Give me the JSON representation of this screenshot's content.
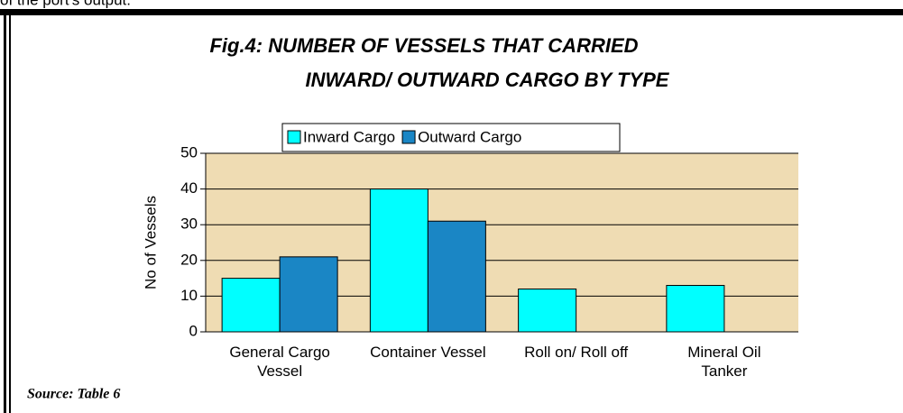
{
  "top_text": "of the port's output.",
  "source": "Source: Table 6",
  "chart_data": {
    "type": "bar",
    "title": [
      "Fig.4: NUMBER OF VESSELS THAT CARRIED",
      "INWARD/ OUTWARD CARGO BY TYPE"
    ],
    "y_label": "No of Vessels",
    "categories": [
      "General Cargo\nVessel",
      "Container Vessel",
      "Roll on/ Roll off",
      "Mineral Oil\nTanker"
    ],
    "series": [
      {
        "name": "Inward Cargo",
        "color": "#00ffff",
        "values": [
          15,
          40,
          12,
          13
        ]
      },
      {
        "name": "Outward Cargo",
        "color": "#1a86c5",
        "values": [
          21,
          31,
          0,
          0
        ]
      }
    ],
    "ylim": [
      0,
      50
    ],
    "yticks": [
      0,
      10,
      20,
      30,
      40,
      50
    ],
    "grid": true,
    "legend": "top"
  }
}
